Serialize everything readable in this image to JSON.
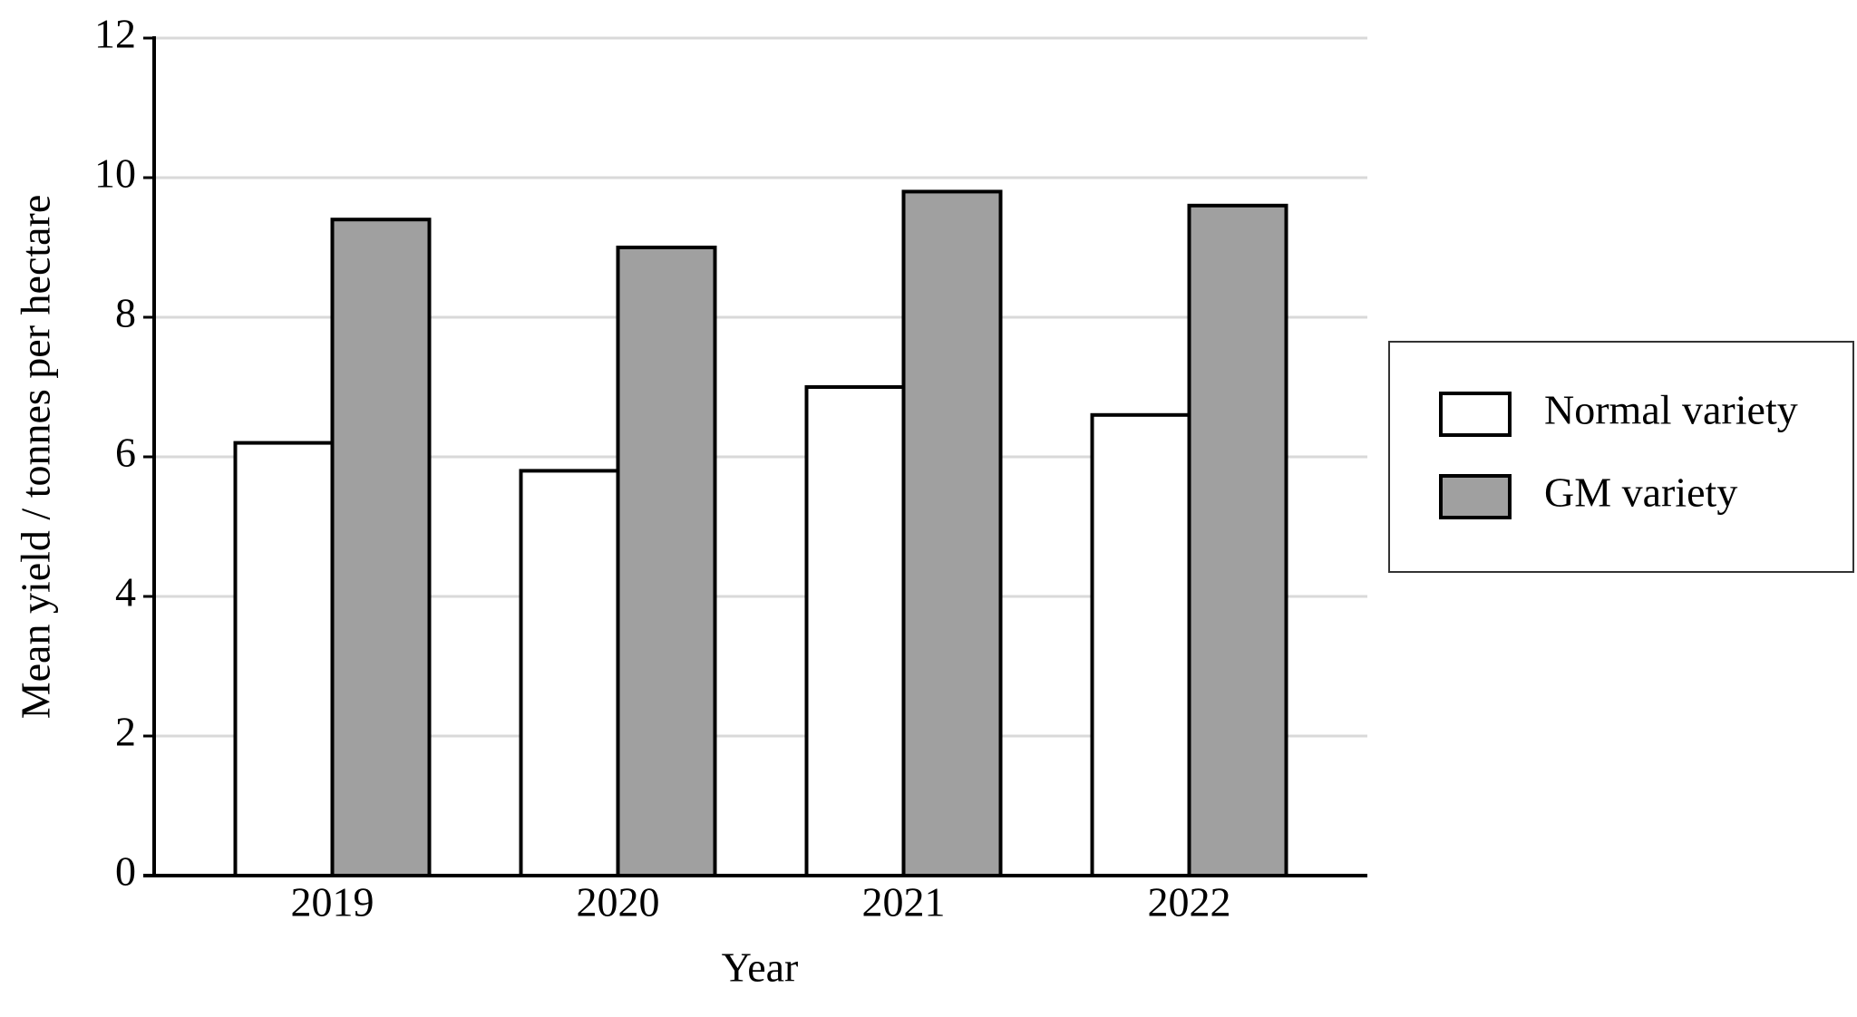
{
  "chart_data": {
    "type": "bar",
    "x_label": "Year",
    "y_label": "Mean yield / tonnes per hectare",
    "categories": [
      "2019",
      "2020",
      "2021",
      "2022"
    ],
    "series": [
      {
        "name": "Normal variety",
        "color": "#ffffff",
        "values": [
          6.2,
          5.8,
          7.0,
          6.6
        ]
      },
      {
        "name": "GM variety",
        "color": "#a0a0a0",
        "values": [
          9.4,
          9.0,
          9.8,
          9.6
        ]
      }
    ],
    "ylim": [
      0,
      12
    ],
    "yticks": [
      0,
      2,
      4,
      6,
      8,
      10,
      12
    ],
    "grid": true,
    "legend": "right"
  }
}
